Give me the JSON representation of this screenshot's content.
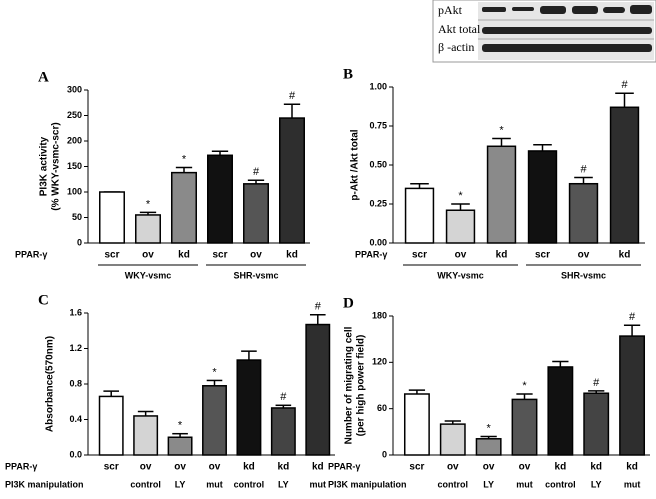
{
  "blot": {
    "labels": [
      "pAkt",
      "Akt total",
      "β -actin"
    ]
  },
  "chart_data": [
    {
      "type": "bar",
      "panel": "A",
      "ylabel": [
        "PI3K activity",
        "(% WKY-vsmc-scr)"
      ],
      "row_labels": [
        "PPAR-γ"
      ],
      "categories": [
        "scr",
        "ov",
        "kd",
        "scr",
        "ov",
        "kd"
      ],
      "values": [
        100,
        55,
        138,
        172,
        116,
        245
      ],
      "errors": [
        0,
        5,
        10,
        8,
        7,
        27
      ],
      "annotations": [
        null,
        "*",
        "*",
        null,
        "#",
        "#"
      ],
      "colors": [
        "#ffffff",
        "#d4d4d4",
        "#8a8a8a",
        "#111111",
        "#555555",
        "#2e2e2e"
      ],
      "groups": [
        {
          "label": "WKY-vsmc",
          "count": 3
        },
        {
          "label": "SHR-vsmc",
          "count": 3
        }
      ],
      "ylim": [
        0,
        300
      ],
      "yticks": [
        0,
        50,
        100,
        150,
        200,
        250,
        300
      ]
    },
    {
      "type": "bar",
      "panel": "B",
      "ylabel": [
        "p-Akt /Akt total"
      ],
      "row_labels": [
        "PPAR-γ"
      ],
      "categories": [
        "scr",
        "ov",
        "kd",
        "scr",
        "ov",
        "kd"
      ],
      "values": [
        0.35,
        0.21,
        0.62,
        0.59,
        0.38,
        0.87
      ],
      "errors": [
        0.03,
        0.04,
        0.05,
        0.04,
        0.04,
        0.09
      ],
      "annotations": [
        null,
        "*",
        "*",
        null,
        "#",
        "#"
      ],
      "colors": [
        "#ffffff",
        "#d4d4d4",
        "#8a8a8a",
        "#111111",
        "#555555",
        "#2e2e2e"
      ],
      "groups": [
        {
          "label": "WKY-vsmc",
          "count": 3
        },
        {
          "label": "SHR-vsmc",
          "count": 3
        }
      ],
      "ylim": [
        0,
        1
      ],
      "yticks": [
        {
          "value": 0,
          "label": "0.00"
        },
        {
          "value": 0.25,
          "label": "0.25"
        },
        {
          "value": 0.5,
          "label": "0.50"
        },
        {
          "value": 0.75,
          "label": "0.75"
        },
        {
          "value": 1,
          "label": "1.00"
        }
      ]
    },
    {
      "type": "bar",
      "panel": "C",
      "ylabel": [
        "Absorbance(570nm)"
      ],
      "row_labels": [
        "PPAR-γ",
        "PI3K manipulation"
      ],
      "categories": [
        "scr",
        "ov",
        "ov",
        "ov",
        "kd",
        "kd",
        "kd"
      ],
      "subcategories": [
        null,
        "control",
        "LY",
        "mut",
        "control",
        "LY",
        "mut"
      ],
      "values": [
        0.66,
        0.44,
        0.2,
        0.78,
        1.07,
        0.53,
        1.47
      ],
      "errors": [
        0.06,
        0.05,
        0.04,
        0.06,
        0.1,
        0.03,
        0.11
      ],
      "annotations": [
        null,
        null,
        "*",
        "*",
        null,
        "#",
        "#"
      ],
      "colors": [
        "#ffffff",
        "#d4d4d4",
        "#8a8a8a",
        "#555555",
        "#111111",
        "#444444",
        "#2e2e2e"
      ],
      "ylim": [
        0,
        1.6
      ],
      "yticks": [
        {
          "value": 0,
          "label": "0.0"
        },
        {
          "value": 0.4,
          "label": "0.4"
        },
        {
          "value": 0.8,
          "label": "0.8"
        },
        {
          "value": 1.2,
          "label": "1.2"
        },
        {
          "value": 1.6,
          "label": "1.6"
        }
      ]
    },
    {
      "type": "bar",
      "panel": "D",
      "ylabel": [
        "Number of migrating cell",
        "(per high power field)"
      ],
      "row_labels": [
        "PPAR-γ",
        "PI3K manipulation"
      ],
      "categories": [
        "scr",
        "ov",
        "ov",
        "ov",
        "kd",
        "kd",
        "kd"
      ],
      "subcategories": [
        null,
        "control",
        "LY",
        "mut",
        "control",
        "LY",
        "mut"
      ],
      "values": [
        79,
        40,
        21,
        72,
        114,
        80,
        154
      ],
      "errors": [
        5,
        4,
        3,
        7,
        7,
        3,
        14
      ],
      "annotations": [
        null,
        null,
        "*",
        "*",
        null,
        "#",
        "#"
      ],
      "colors": [
        "#ffffff",
        "#d4d4d4",
        "#8a8a8a",
        "#555555",
        "#111111",
        "#444444",
        "#2e2e2e"
      ],
      "ylim": [
        0,
        180
      ],
      "yticks": [
        0,
        60,
        120,
        180
      ]
    }
  ]
}
